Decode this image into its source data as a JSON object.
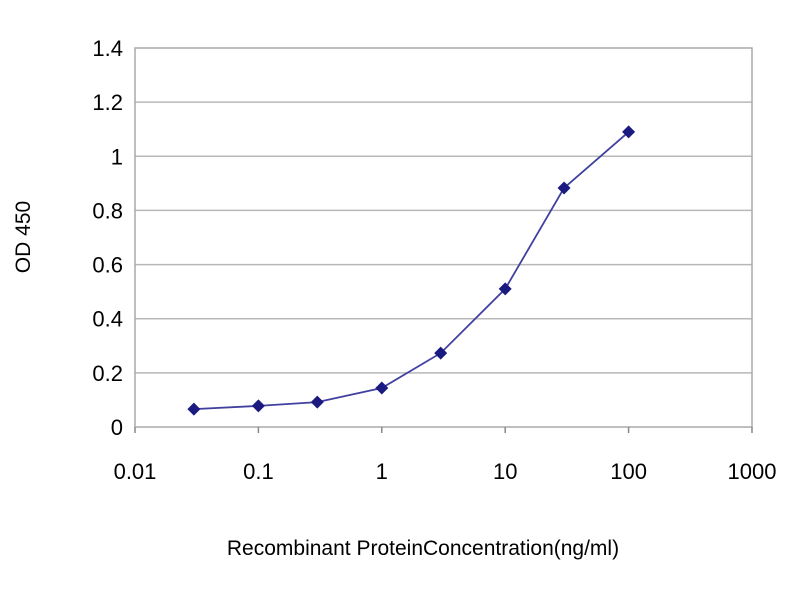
{
  "chart_data": {
    "type": "line",
    "title": "",
    "xlabel": "Recombinant ProteinConcentration(ng/ml)",
    "ylabel": "OD 450",
    "xscale": "log",
    "xlim": [
      0.01,
      1000
    ],
    "ylim": [
      0,
      1.4
    ],
    "xticks": [
      "0.01",
      "0.1",
      "1",
      "10",
      "100",
      "1000"
    ],
    "xtick_values": [
      0.01,
      0.1,
      1,
      10,
      100,
      1000
    ],
    "yticks": [
      "0",
      "0.2",
      "0.4",
      "0.6",
      "0.8",
      "1",
      "1.2",
      "1.4"
    ],
    "ytick_values": [
      0,
      0.2,
      0.4,
      0.6,
      0.8,
      1,
      1.2,
      1.4
    ],
    "grid": "horizontal",
    "legend": "none",
    "series": [
      {
        "x": [
          0.03,
          0.1,
          0.3,
          1,
          3,
          10,
          30,
          100
        ],
        "y": [
          0.066,
          0.078,
          0.092,
          0.144,
          0.273,
          0.51,
          0.883,
          1.09
        ],
        "color": "#1a1a80",
        "marker": "diamond"
      }
    ]
  }
}
